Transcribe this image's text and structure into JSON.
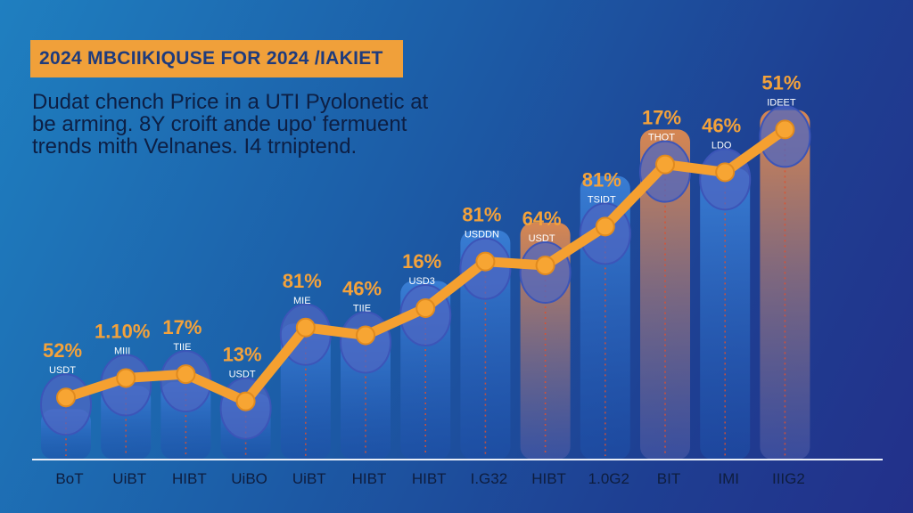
{
  "title": "2024 MBCIIKIQUSE FOR 2024 /IAKIET",
  "subtitle_lines": [
    "Dudat chench Price in a UTI Pyolonetic at",
    "be arming. 8Y croift ande upo' fermuent",
    "trends mith Velnanes. I4 trniptend."
  ],
  "colors": {
    "background_start": "#1f7fc0",
    "background_end": "#23308a",
    "banner": "#f0a03a",
    "line": "#f5a030",
    "bar_blue": "#2f6fc6",
    "bar_orange": "#d9824a",
    "bubble": "#4e67c2",
    "label": "#f4a23a"
  },
  "chart_data": {
    "type": "bar",
    "title": "2024 MBCIIKIQUSE FOR 2024 /IAKIET",
    "xlabel": "",
    "ylabel": "",
    "grid": false,
    "ylim": [
      0,
      100
    ],
    "categories": [
      "BoT",
      "UiBT",
      "HIBT",
      "UiBO",
      "UiBT",
      "HIBT",
      "HIBT",
      "I.G32",
      "HIBT",
      "1.0G2",
      "BIT",
      "IMI",
      "IIIG2"
    ],
    "bar_values": [
      13,
      19,
      20,
      17,
      35,
      34,
      46,
      59,
      61,
      73,
      85,
      75,
      90
    ],
    "bar_colors": [
      "blue",
      "blue",
      "blue",
      "blue",
      "blue",
      "blue",
      "blue",
      "blue",
      "orange",
      "blue",
      "orange",
      "blue",
      "orange"
    ],
    "series": [
      {
        "values": [
          16,
          21,
          22,
          15,
          34,
          32,
          39,
          51,
          50,
          60,
          76,
          74,
          85
        ]
      }
    ],
    "point_labels": [
      "52%",
      "1.10%",
      "17%",
      "13%",
      "81%",
      "46%",
      "16%",
      "81%",
      "64%",
      "81%",
      "17%",
      "46%",
      "51%"
    ],
    "point_sublabels": [
      "USDT",
      "MIII",
      "TIIE",
      "USDT",
      "MIE",
      "TIIE",
      "USD3",
      "USDDN",
      "USDT",
      "TSIDT",
      "THOT",
      "LDO",
      "IDEET"
    ]
  }
}
